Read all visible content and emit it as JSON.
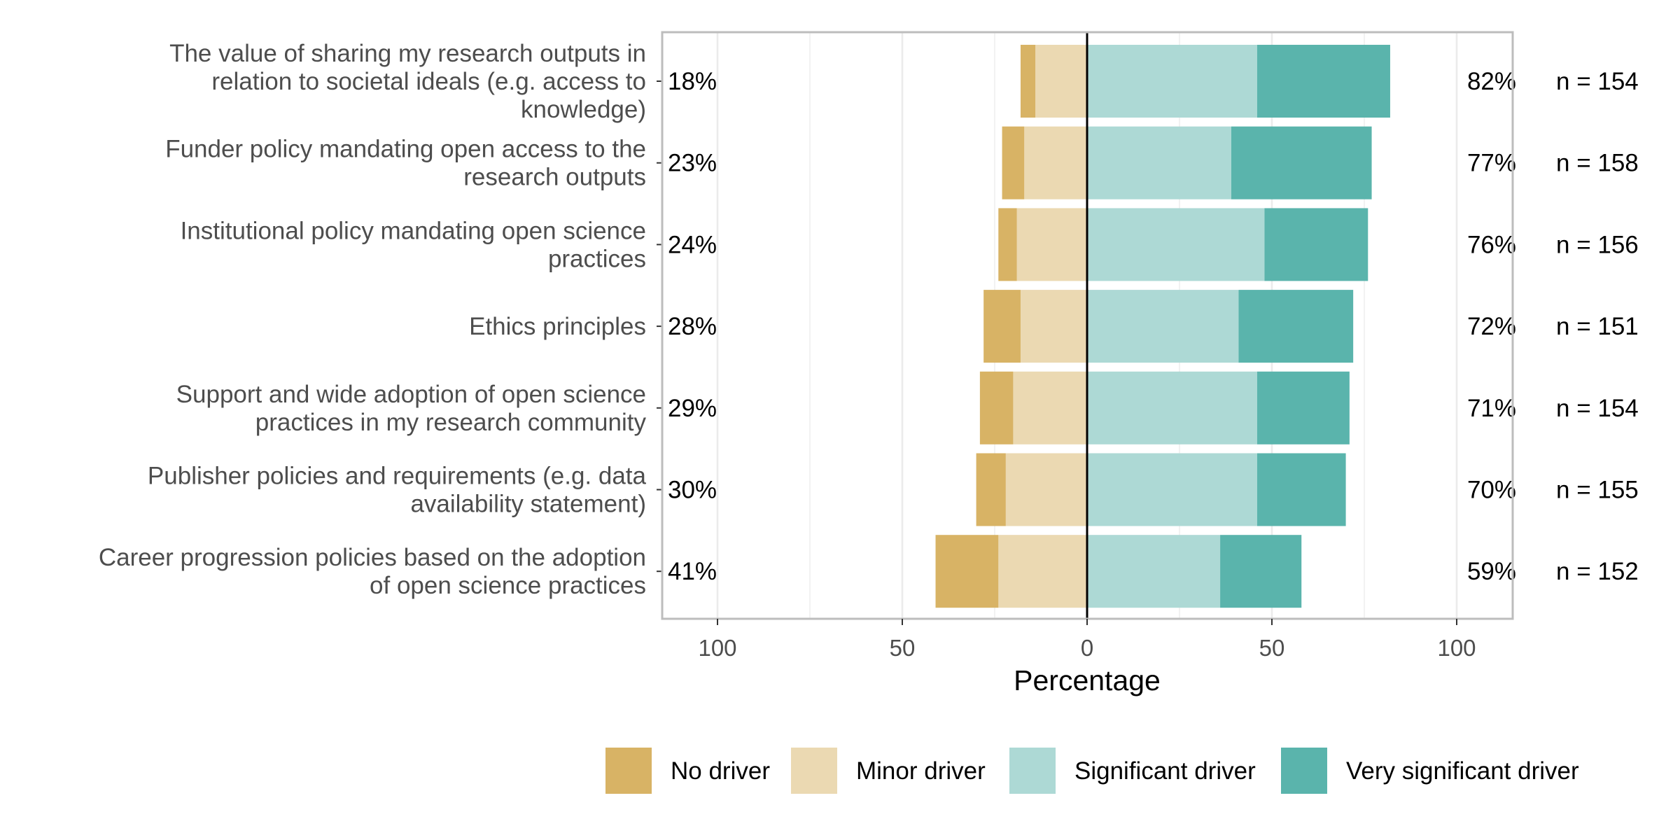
{
  "chart_data": {
    "type": "bar",
    "orientation": "horizontal",
    "stacking": "diverging",
    "categories": [
      "The value of sharing my research outputs in relation to societal ideals (e.g. access to knowledge)",
      "Funder policy mandating open access to the research outputs",
      "Institutional policy mandating open science practices",
      "Ethics principles",
      "Support and wide adoption of open science practices in my research community",
      "Publisher policies and requirements (e.g. data availability statement)",
      "Career progression policies based on the adoption of open science practices"
    ],
    "category_lines": [
      [
        "The value of sharing my research outputs in",
        "relation to societal ideals (e.g. access to",
        "knowledge)"
      ],
      [
        "Funder policy mandating open access to the",
        "research outputs"
      ],
      [
        "Institutional policy mandating open science",
        "practices"
      ],
      [
        "Ethics principles"
      ],
      [
        "Support and wide adoption of open science",
        "practices in my research community"
      ],
      [
        "Publisher policies and requirements (e.g. data",
        "availability statement)"
      ],
      [
        "Career progression policies based on the adoption",
        "of open science practices"
      ]
    ],
    "series": [
      {
        "name": "No driver",
        "side": "negative",
        "color": "#d8b365",
        "values": [
          4,
          6,
          5,
          10,
          9,
          8,
          17
        ]
      },
      {
        "name": "Minor driver",
        "side": "negative",
        "color": "#ebd9b2",
        "values": [
          14,
          17,
          19,
          18,
          20,
          22,
          24
        ]
      },
      {
        "name": "Significant driver",
        "side": "positive",
        "color": "#add9d5",
        "values": [
          46,
          39,
          48,
          41,
          46,
          46,
          36
        ]
      },
      {
        "name": "Very significant driver",
        "side": "positive",
        "color": "#5ab4ac",
        "values": [
          36,
          38,
          28,
          31,
          25,
          24,
          22
        ]
      }
    ],
    "left_totals": [
      "18%",
      "23%",
      "24%",
      "28%",
      "29%",
      "30%",
      "41%"
    ],
    "right_totals": [
      "82%",
      "77%",
      "76%",
      "72%",
      "71%",
      "70%",
      "59%"
    ],
    "n_labels": [
      "n = 154",
      "n = 158",
      "n = 156",
      "n = 151",
      "n = 154",
      "n = 155",
      "n = 152"
    ],
    "xlim": [
      -115,
      115
    ],
    "xticks": [
      -100,
      -50,
      0,
      50,
      100
    ],
    "xtick_labels": [
      "100",
      "50",
      "0",
      "50",
      "100"
    ],
    "xlabel": "Percentage",
    "ylabel": "",
    "title": "",
    "grid": true,
    "legend_position": "bottom",
    "colors": {
      "panel_border": "#bdbdbd",
      "grid": "#ebebeb",
      "zero_line": "#000000"
    }
  }
}
